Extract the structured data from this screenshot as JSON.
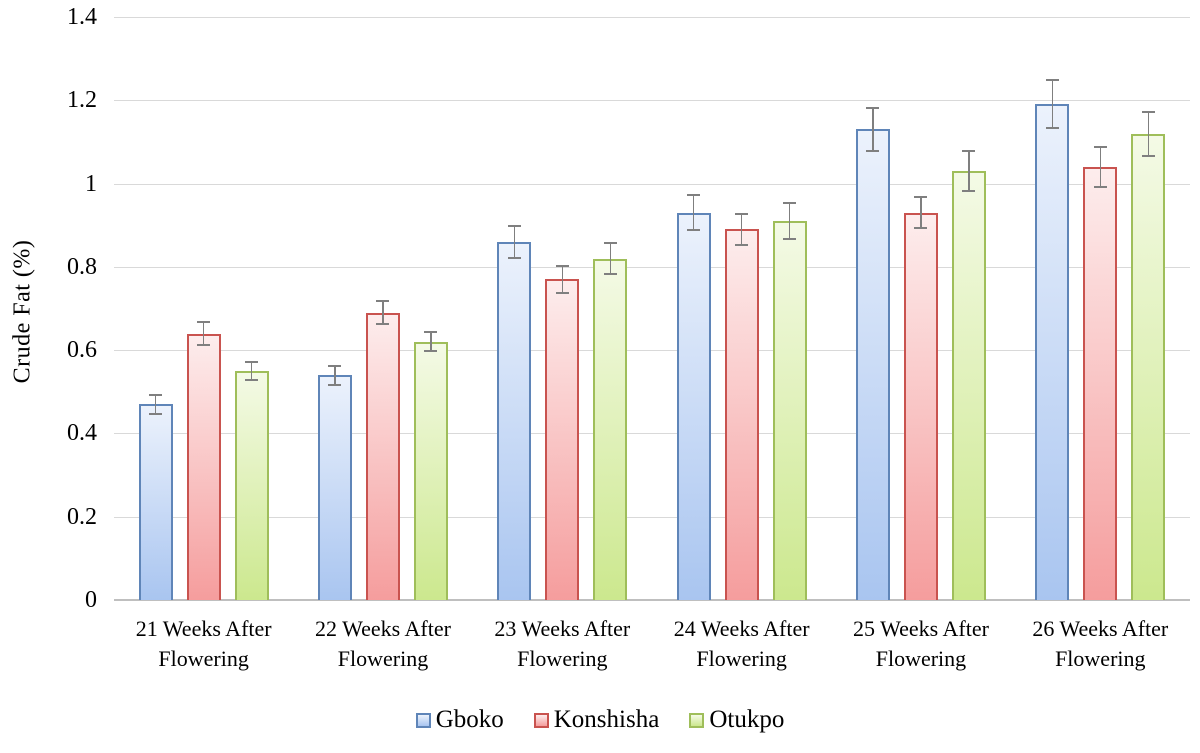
{
  "chart_data": {
    "type": "bar",
    "title": "",
    "xlabel": "",
    "ylabel": "Crude Fat (%)",
    "ylim": [
      0,
      1.4
    ],
    "yticks": [
      0,
      0.2,
      0.4,
      0.6,
      0.8,
      1,
      1.2,
      1.4
    ],
    "ytick_labels": [
      "0",
      "0.2",
      "0.4",
      "0.6",
      "0.8",
      "1",
      "1.2",
      "1.4"
    ],
    "grid": "horizontal",
    "legend_position": "bottom",
    "categories": [
      "21 Weeks After Flowering",
      "22 Weeks After Flowering",
      "23 Weeks After Flowering",
      "24 Weeks After Flowering",
      "25 Weeks After Flowering",
      "26 Weeks After Flowering"
    ],
    "series": [
      {
        "name": "Gboko",
        "values": [
          0.47,
          0.54,
          0.86,
          0.93,
          1.13,
          1.19
        ],
        "errors": [
          0.025,
          0.025,
          0.04,
          0.045,
          0.055,
          0.06
        ],
        "border_color": "#5f85b8",
        "fill_top": "#ecf2fc",
        "fill_bottom": "#a9c5f0"
      },
      {
        "name": "Konshisha",
        "values": [
          0.64,
          0.69,
          0.77,
          0.89,
          0.93,
          1.04
        ],
        "errors": [
          0.03,
          0.03,
          0.035,
          0.04,
          0.04,
          0.05
        ],
        "border_color": "#c9534f",
        "fill_top": "#fdeded",
        "fill_bottom": "#f59d9d"
      },
      {
        "name": "Otukpo",
        "values": [
          0.55,
          0.62,
          0.82,
          0.91,
          1.03,
          1.12
        ],
        "errors": [
          0.025,
          0.025,
          0.04,
          0.045,
          0.05,
          0.055
        ],
        "border_color": "#9fbe5a",
        "fill_top": "#f4fae6",
        "fill_bottom": "#cce88e"
      }
    ],
    "error_bar_color": "#7f7f7f",
    "gridline_color": "#d9d9d9",
    "axis_line_color": "#bfbfbf"
  }
}
